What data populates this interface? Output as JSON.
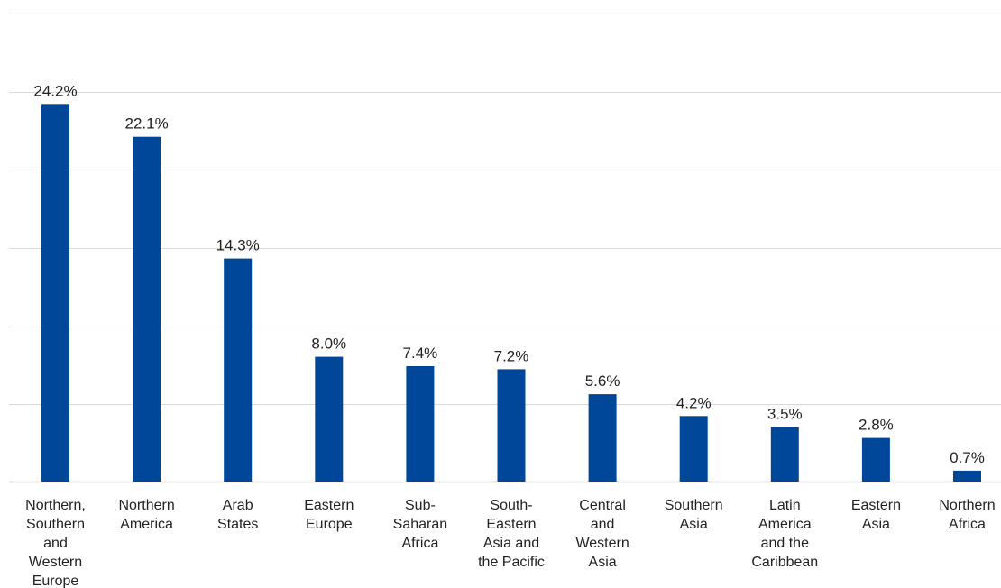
{
  "chart_data": {
    "type": "bar",
    "title": "",
    "xlabel": "",
    "ylabel": "",
    "ylim": [
      0,
      30
    ],
    "grid": true,
    "bar_color": "#00479a",
    "categories": [
      [
        "Northern,",
        "Southern",
        "and",
        "Western",
        "Europe"
      ],
      [
        "Northern",
        "America"
      ],
      [
        "Arab",
        "States"
      ],
      [
        "Eastern",
        "Europe"
      ],
      [
        "Sub-",
        "Saharan",
        "Africa"
      ],
      [
        "South-",
        "Eastern",
        "Asia and",
        "the Pacific"
      ],
      [
        "Central",
        "and",
        "Western",
        "Asia"
      ],
      [
        "Southern",
        "Asia"
      ],
      [
        "Latin",
        "America",
        "and the",
        "Caribbean"
      ],
      [
        "Eastern",
        "Asia"
      ],
      [
        "Northern",
        "Africa"
      ]
    ],
    "values": [
      24.2,
      22.1,
      14.3,
      8.0,
      7.4,
      7.2,
      5.6,
      4.2,
      3.5,
      2.8,
      0.7
    ],
    "value_labels": [
      "24.2%",
      "22.1%",
      "14.3%",
      "8.0%",
      "7.4%",
      "7.2%",
      "5.6%",
      "4.2%",
      "3.5%",
      "2.8%",
      "0.7%"
    ]
  }
}
